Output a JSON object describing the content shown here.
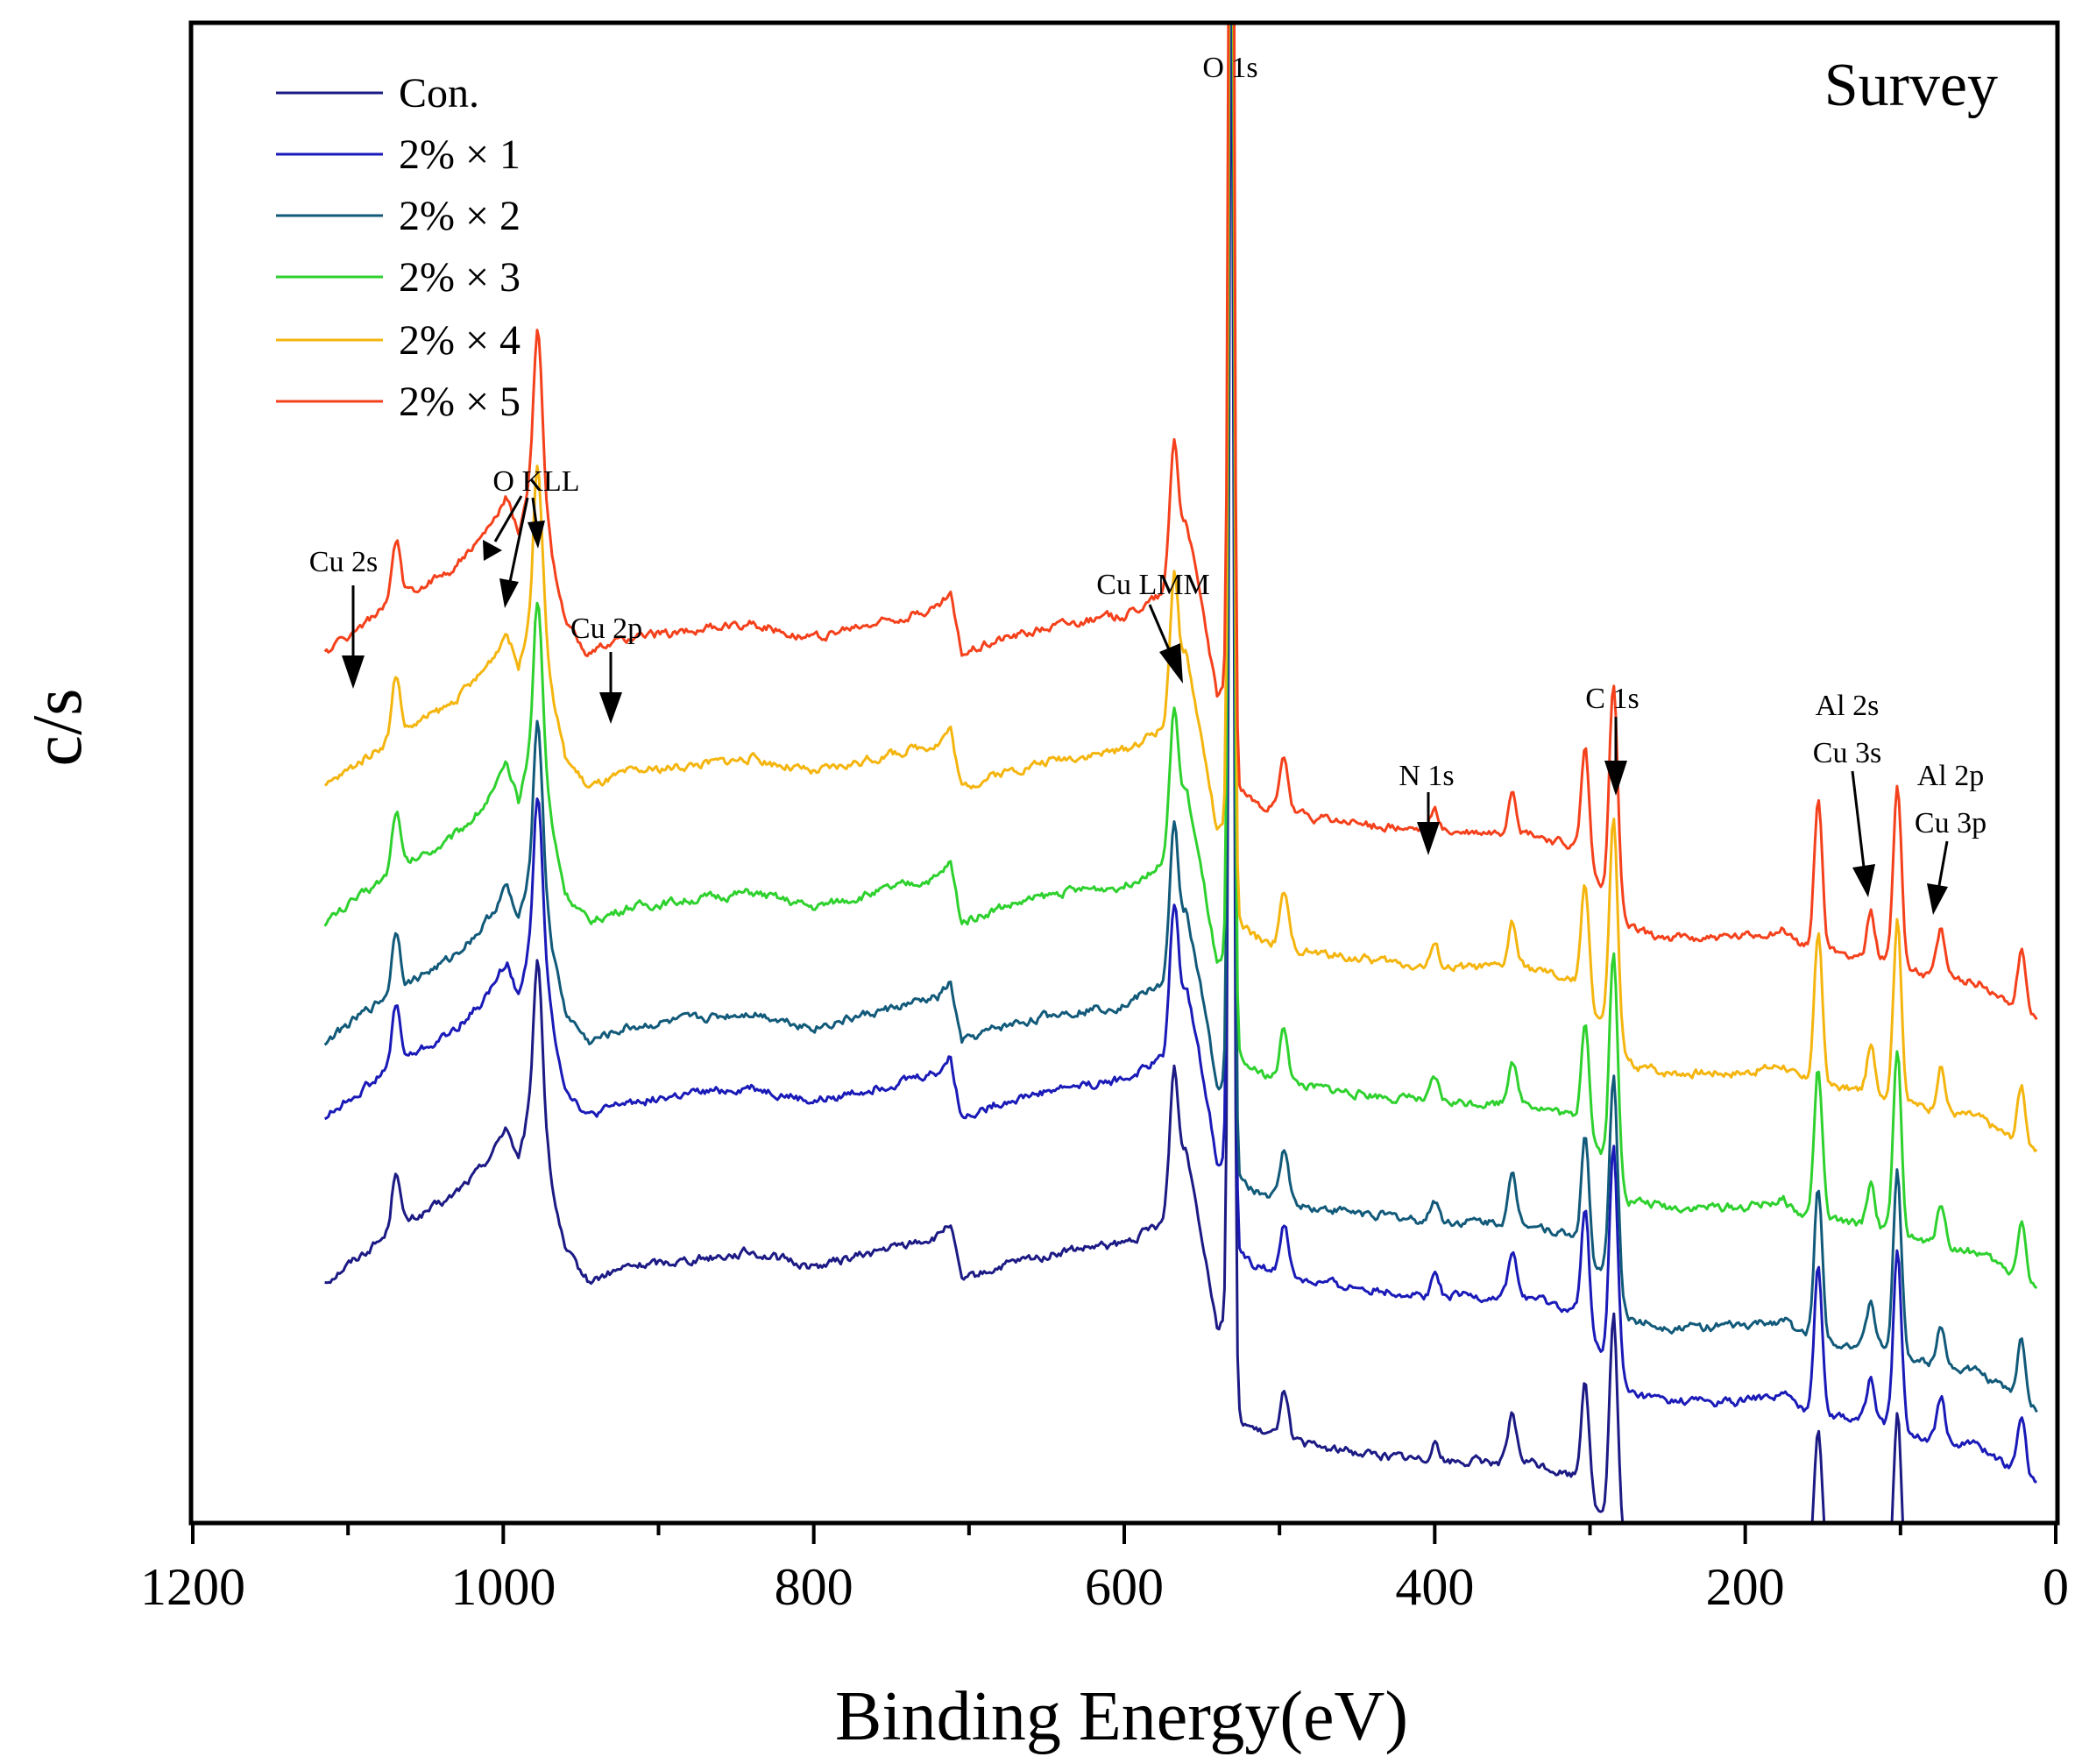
{
  "chart_data": {
    "type": "line",
    "title": "Survey",
    "xlabel": "Binding Energy(eV)",
    "ylabel": "c/s",
    "xlim": [
      1200,
      0
    ],
    "ylim": [
      0,
      1
    ],
    "x_reversed": true,
    "x_ticks": [
      {
        "value": 1200,
        "label": "1200"
      },
      {
        "value": 1000,
        "label": "1000"
      },
      {
        "value": 800,
        "label": "800"
      },
      {
        "value": 600,
        "label": "600"
      },
      {
        "value": 400,
        "label": "400"
      },
      {
        "value": 200,
        "label": "200"
      },
      {
        "value": 0,
        "label": "0"
      }
    ],
    "x_minor_ticks": [
      1100,
      900,
      700,
      500,
      300,
      100
    ],
    "legend_position": "top-left",
    "series": [
      {
        "name": "Con.",
        "label": "Con.",
        "color": "#1c1a84",
        "offset": 0.16
      },
      {
        "name": "2% x 1",
        "label": "2% × 1",
        "color": "#1a1ab8",
        "offset": 0.27
      },
      {
        "name": "2% x 2",
        "label": "2% × 2",
        "color": "#125a7a",
        "offset": 0.32
      },
      {
        "name": "2% x 3",
        "label": "2% × 3",
        "color": "#2ed12e",
        "offset": 0.4
      },
      {
        "name": "2% x 4",
        "label": "2% × 4",
        "color": "#f4b50f",
        "offset": 0.49
      },
      {
        "name": "2% x 5",
        "label": "2% × 5",
        "color": "#f4411c",
        "offset": 0.58
      }
    ],
    "baseline_points": [
      [
        1115,
        0.0
      ],
      [
        1070,
        0.035
      ],
      [
        1035,
        0.055
      ],
      [
        1015,
        0.075
      ],
      [
        1005,
        0.09
      ],
      [
        998,
        0.105
      ],
      [
        990,
        0.08
      ],
      [
        985,
        0.105
      ],
      [
        975,
        0.12
      ],
      [
        968,
        0.06
      ],
      [
        960,
        0.02
      ],
      [
        945,
        0.0
      ],
      [
        920,
        0.01
      ],
      [
        880,
        0.015
      ],
      [
        840,
        0.02
      ],
      [
        800,
        0.01
      ],
      [
        760,
        0.02
      ],
      [
        720,
        0.03
      ],
      [
        712,
        0.04
      ],
      [
        705,
        0.0
      ],
      [
        680,
        0.01
      ],
      [
        640,
        0.02
      ],
      [
        600,
        0.025
      ],
      [
        575,
        0.04
      ],
      [
        560,
        0.09
      ],
      [
        548,
        0.02
      ],
      [
        540,
        -0.03
      ],
      [
        532,
        -0.02
      ],
      [
        528,
        -0.09
      ],
      [
        515,
        -0.1
      ],
      [
        480,
        -0.11
      ],
      [
        440,
        -0.115
      ],
      [
        400,
        -0.12
      ],
      [
        340,
        -0.12
      ],
      [
        310,
        -0.13
      ],
      [
        300,
        -0.15
      ],
      [
        285,
        -0.16
      ],
      [
        275,
        -0.185
      ],
      [
        250,
        -0.19
      ],
      [
        200,
        -0.19
      ],
      [
        175,
        -0.185
      ],
      [
        165,
        -0.195
      ],
      [
        140,
        -0.2
      ],
      [
        110,
        -0.205
      ],
      [
        80,
        -0.215
      ],
      [
        50,
        -0.22
      ],
      [
        12,
        -0.245
      ]
    ],
    "peaks": [
      {
        "label": "O 1s",
        "x": 531,
        "height": 0.92
      },
      {
        "label": "Cu 2s",
        "x": 1096,
        "height": 0.0
      },
      {
        "label": "O KLL",
        "x": 978,
        "height": 0.1
      },
      {
        "label": "Cu 2p",
        "x": 932,
        "height": 0.0
      },
      {
        "label": "Cu LMM",
        "x": 568,
        "height": 0.08
      },
      {
        "label": "N 1s",
        "x": 400,
        "height": 0.015
      },
      {
        "label": "C 1s",
        "x": 284.8,
        "height": 0.14
      },
      {
        "label": "Al 2s Cu 3s",
        "x": 119,
        "height": 0.03
      },
      {
        "label": "Al 2p Cu 3p",
        "x": 74,
        "height": 0.03
      },
      {
        "label": "",
        "x": 1069,
        "height": 0.04
      },
      {
        "label": "",
        "x": 497,
        "height": 0.035
      },
      {
        "label": "",
        "x": 350,
        "height": 0.03
      },
      {
        "label": "",
        "x": 303,
        "height": 0.08
      },
      {
        "label": "",
        "x": 153,
        "height": 0.1
      },
      {
        "label": "",
        "x": 102,
        "height": 0.12
      },
      {
        "label": "",
        "x": 22,
        "height": 0.04
      }
    ],
    "annotations": [
      {
        "text": "O 1s",
        "x": 531
      },
      {
        "text": "Cu 2s",
        "x": 1096
      },
      {
        "text": "O KLL",
        "x": 978
      },
      {
        "text": "Cu 2p",
        "x": 932
      },
      {
        "text": "Cu LMM",
        "x": 565
      },
      {
        "text": "N 1s",
        "x": 400
      },
      {
        "text": "C 1s",
        "x": 284
      },
      {
        "text": "Al 2s",
        "x": 119
      },
      {
        "text": "Cu 3s",
        "x": 119
      },
      {
        "text": "Al 2p",
        "x": 74
      },
      {
        "text": "Cu 3p",
        "x": 74
      }
    ]
  }
}
